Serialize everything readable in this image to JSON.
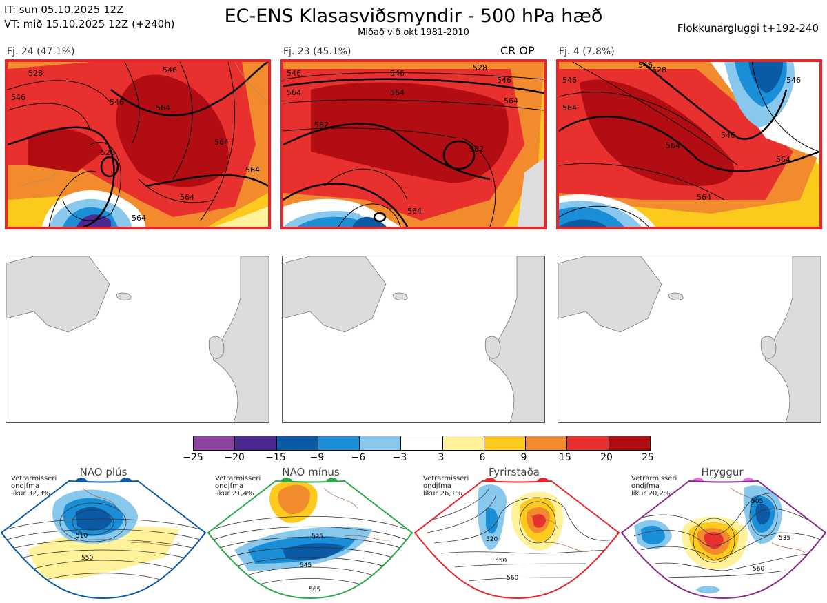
{
  "header": {
    "it": "IT: sun 05.10.2025 12Z",
    "vt": "VT: mið 15.10.2025 12Z  (+240h)",
    "title": "EC-ENS Klasasviðsmyndir - 500 hPa hæð",
    "subtitle": "Miðað við okt 1981-2010",
    "window": "Flokkunargluggi t+192-240"
  },
  "clusters": [
    {
      "label": "Fj. 24 (47.1%)",
      "tag": "",
      "contours": [
        "546",
        "564",
        "528",
        "546",
        "564",
        "546",
        "564",
        "564",
        "528",
        "564"
      ]
    },
    {
      "label": "Fj. 23 (45.1%)",
      "tag": "CR OP",
      "contours": [
        "546",
        "546",
        "564",
        "528",
        "564",
        "582",
        "582",
        "564",
        "564",
        "546"
      ]
    },
    {
      "label": "Fj. 4 (7.8%)",
      "tag": "",
      "contours": [
        "546",
        "528",
        "546",
        "564",
        "546",
        "564",
        "564",
        "564",
        "546"
      ]
    }
  ],
  "colorbar": {
    "ticks": [
      "−25",
      "−20",
      "−15",
      "−9",
      "−6",
      "−3",
      "3",
      "6",
      "9",
      "15",
      "20",
      "25"
    ],
    "colors": [
      "#8d45a0",
      "#4a2a91",
      "#0b5aa6",
      "#1a8fd7",
      "#88c8ec",
      "#ffffff",
      "#fff29a",
      "#fcca1d",
      "#f28a2e",
      "#e8312f",
      "#b30d14"
    ]
  },
  "regimes": [
    {
      "title": "NAO plús",
      "note": [
        "Vetrarmisseri",
        "ondjfma",
        "líkur 32,3%"
      ],
      "color": "#0b5aa6",
      "dots": [
        "#0b5aa6",
        "#0b5aa6"
      ],
      "labels": [
        "510",
        "550"
      ]
    },
    {
      "title": "NAO mínus",
      "note": [
        "Vetrarmisseri",
        "ondjfma",
        "líkur 21,4%"
      ],
      "color": "#2aa84a",
      "dots": [
        "#2aa84a",
        "#2aa84a"
      ],
      "labels": [
        "525",
        "545",
        "565"
      ]
    },
    {
      "title": "Fyrirstaða",
      "note": [
        "Vetrarmisseri",
        "ondjfma",
        "líkur 26,1%"
      ],
      "color": "#e8262a",
      "dots": [
        "#e8262a",
        "#e8262a"
      ],
      "labels": [
        "520",
        "550",
        "560"
      ]
    },
    {
      "title": "Hryggur",
      "note": [
        "Vetrarmisseri",
        "ondjfma",
        "líkur 20,2%"
      ],
      "color": "#8a2a8a",
      "dots": [
        "#ee6fe8",
        "#ee6fe8"
      ],
      "labels": [
        "505",
        "535",
        "560"
      ]
    }
  ]
}
